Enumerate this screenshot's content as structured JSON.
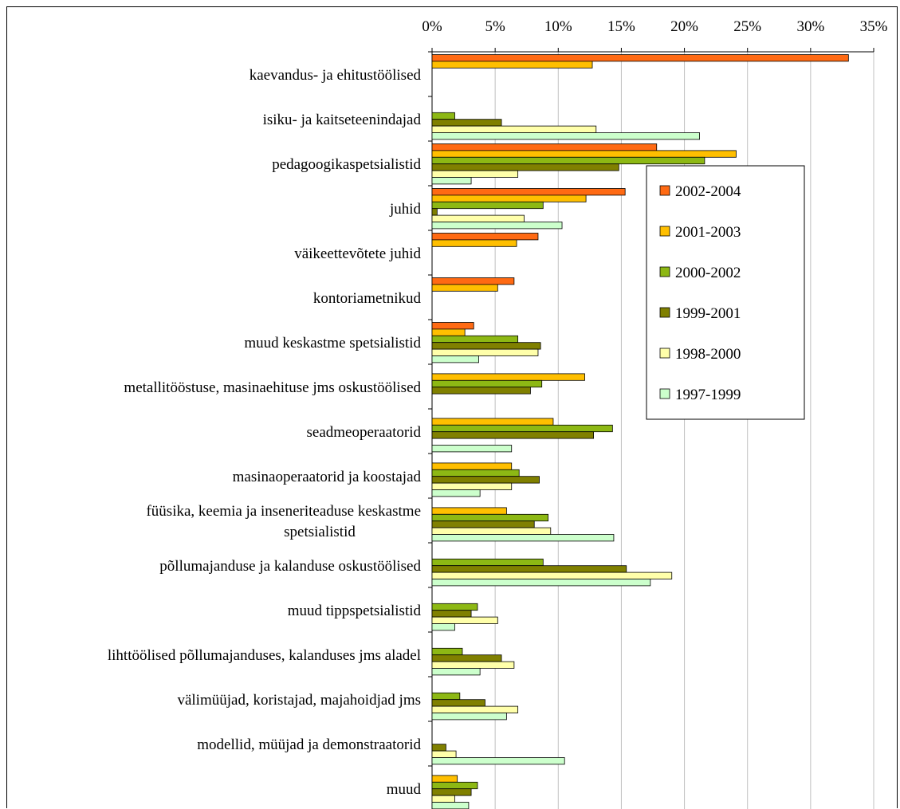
{
  "chart_data": {
    "type": "bar",
    "orientation": "horizontal",
    "title": "",
    "xlabel": "",
    "ylabel": "",
    "xlim": [
      0,
      35
    ],
    "xticks": [
      "0%",
      "5%",
      "10%",
      "15%",
      "20%",
      "25%",
      "30%",
      "35%"
    ],
    "x_axis_position": "top",
    "grid": true,
    "legend_position": "right",
    "categories": [
      [
        "kaevandus- ja ehitustöölised"
      ],
      [
        "isiku- ja kaitseteenindajad"
      ],
      [
        "pedagoogikaspetsialistid"
      ],
      [
        "juhid"
      ],
      [
        "väikeettevõtete juhid"
      ],
      [
        "kontoriametnikud"
      ],
      [
        "muud keskastme spetsialistid"
      ],
      [
        "metallitööstuse, masinaehituse jms oskustöölised"
      ],
      [
        "seadmeoperaatorid"
      ],
      [
        "masinaoperaatorid ja koostajad"
      ],
      [
        "füüsika, keemia ja inseneriteaduse keskastme",
        "spetsialistid"
      ],
      [
        "põllumajanduse ja kalanduse oskustöölised"
      ],
      [
        "muud tippspetsialistid"
      ],
      [
        "lihttöölised põllumajanduses, kalanduses jms aladel"
      ],
      [
        "välimüüjad, koristajad, majahoidjad jms"
      ],
      [
        "modellid, müüjad ja demonstraatorid"
      ],
      [
        "muud"
      ]
    ],
    "series": [
      {
        "name": "2002-2004",
        "color": "#FF6A13",
        "values": [
          33.0,
          0,
          17.8,
          15.3,
          8.4,
          6.5,
          3.3,
          0,
          0,
          0,
          0,
          0,
          0,
          0,
          0,
          0,
          0
        ]
      },
      {
        "name": "2001-2003",
        "color": "#FFBF00",
        "values": [
          12.7,
          0,
          24.1,
          12.2,
          6.7,
          5.2,
          2.6,
          12.1,
          9.6,
          6.3,
          5.9,
          0,
          0,
          0,
          0,
          0,
          2.0
        ]
      },
      {
        "name": "2000-2002",
        "color": "#8DB814",
        "values": [
          0,
          1.8,
          21.6,
          8.8,
          0,
          0,
          6.8,
          8.7,
          14.3,
          6.9,
          9.2,
          8.8,
          3.6,
          2.4,
          2.2,
          0,
          3.6
        ]
      },
      {
        "name": "1999-2001",
        "color": "#808000",
        "values": [
          0,
          5.5,
          14.8,
          0.4,
          0,
          0,
          8.6,
          7.8,
          12.8,
          8.5,
          8.1,
          15.4,
          3.1,
          5.5,
          4.2,
          1.1,
          3.1
        ]
      },
      {
        "name": "1998-2000",
        "color": "#FFFFAA",
        "values": [
          0,
          13.0,
          6.8,
          7.3,
          0,
          0,
          8.4,
          0,
          0,
          6.3,
          9.4,
          19.0,
          5.2,
          6.5,
          6.8,
          1.9,
          1.8
        ]
      },
      {
        "name": "1997-1999",
        "color": "#CCFFCC",
        "values": [
          0,
          21.2,
          3.1,
          10.3,
          0,
          0,
          3.7,
          0,
          6.3,
          3.8,
          14.4,
          17.3,
          1.8,
          3.8,
          5.9,
          10.5,
          2.9
        ]
      }
    ]
  }
}
